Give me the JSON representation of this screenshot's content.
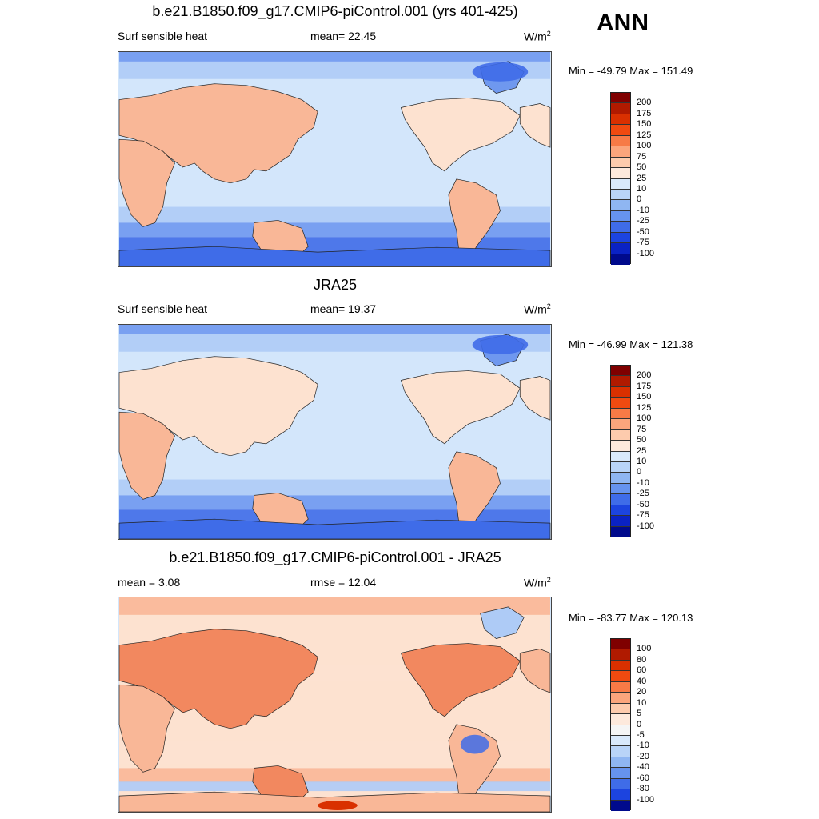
{
  "season": "ANN",
  "panels": [
    {
      "title": "b.e21.B1850.f09_g17.CMIP6-piControl.001 (yrs 401-425)",
      "left_label": "Surf sensible heat",
      "center_label": "mean=  22.45",
      "units_base": "W/m",
      "units_exp": "2",
      "minmax": "Min = -49.79 Max = 151.49",
      "colorbar": {
        "labels": [
          "200",
          "175",
          "150",
          "125",
          "100",
          "75",
          "50",
          "25",
          "10",
          "0",
          "-10",
          "-25",
          "-50",
          "-75",
          "-100"
        ],
        "colors": [
          "#7f0000",
          "#b01a00",
          "#d93000",
          "#f04a10",
          "#f77a46",
          "#fba57c",
          "#fdcbad",
          "#fde9dc",
          "#d9e9fb",
          "#b9d4f8",
          "#8fb6f2",
          "#6693ee",
          "#3f6ce8",
          "#1c44df",
          "#0a22c4",
          "#000a8c"
        ]
      }
    },
    {
      "title": "JRA25",
      "left_label": "Surf sensible heat",
      "center_label": "mean=  19.37",
      "units_base": "W/m",
      "units_exp": "2",
      "minmax": "Min = -46.99 Max = 121.38",
      "colorbar": {
        "labels": [
          "200",
          "175",
          "150",
          "125",
          "100",
          "75",
          "50",
          "25",
          "10",
          "0",
          "-10",
          "-25",
          "-50",
          "-75",
          "-100"
        ],
        "colors": [
          "#7f0000",
          "#b01a00",
          "#d93000",
          "#f04a10",
          "#f77a46",
          "#fba57c",
          "#fdcbad",
          "#fde9dc",
          "#d9e9fb",
          "#b9d4f8",
          "#8fb6f2",
          "#6693ee",
          "#3f6ce8",
          "#1c44df",
          "#0a22c4",
          "#000a8c"
        ]
      }
    },
    {
      "title": "b.e21.B1850.f09_g17.CMIP6-piControl.001 - JRA25",
      "left_label": "mean =   3.08",
      "center_label": "rmse =  12.04",
      "units_base": "W/m",
      "units_exp": "2",
      "minmax": "Min = -83.77 Max = 120.13",
      "colorbar": {
        "labels": [
          "100",
          "80",
          "60",
          "40",
          "20",
          "10",
          "5",
          "0",
          "-5",
          "-10",
          "-20",
          "-40",
          "-60",
          "-80",
          "-100"
        ],
        "colors": [
          "#7f0000",
          "#b01a00",
          "#d93000",
          "#f04a10",
          "#f77a46",
          "#fba57c",
          "#fdcbad",
          "#fde9dc",
          "#f5f5f5",
          "#d9e9fb",
          "#b9d4f8",
          "#8fb6f2",
          "#6693ee",
          "#3f6ce8",
          "#1c44df",
          "#000a8c"
        ]
      }
    }
  ],
  "map_colors": {
    "ocean": "#d3e6fb",
    "warm_light": "#fde2d0",
    "warm_mid": "#f9b797",
    "warm_strong": "#f2885f",
    "cool_light": "#aecbf6",
    "cool_mid": "#6f98ef",
    "cool_strong": "#3f6ce8",
    "diff_bg": "#f9b797",
    "coast": "#222222"
  }
}
